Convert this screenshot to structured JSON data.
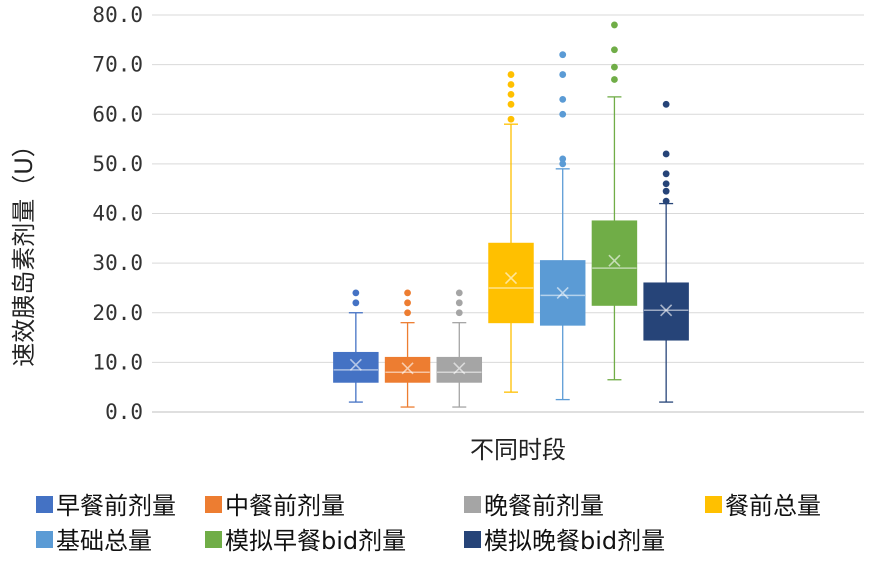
{
  "chart_data": {
    "type": "box",
    "title": "",
    "xlabel": "不同时段",
    "ylabel": "速效胰岛素剂量（U）",
    "ylim": [
      0,
      80
    ],
    "yticks": [
      "0.0",
      "10.0",
      "20.0",
      "30.0",
      "40.0",
      "50.0",
      "60.0",
      "70.0",
      "80.0"
    ],
    "grid": true,
    "legend_position": "bottom",
    "series": [
      {
        "name": "早餐前剂量",
        "color": "#4472C4",
        "whisker_color": "#4472C4",
        "min": 2,
        "q1": 6,
        "median": 8.5,
        "q3": 12,
        "max": 20,
        "mean": 9.5,
        "outliers": [
          22,
          24
        ]
      },
      {
        "name": "中餐前剂量",
        "color": "#ED7D31",
        "whisker_color": "#ED7D31",
        "min": 1,
        "q1": 6,
        "median": 8,
        "q3": 11,
        "max": 18,
        "mean": 8.8,
        "outliers": [
          20,
          22,
          24
        ]
      },
      {
        "name": "晚餐前剂量",
        "color": "#A5A5A5",
        "whisker_color": "#A5A5A5",
        "min": 1,
        "q1": 6,
        "median": 8,
        "q3": 11,
        "max": 18,
        "mean": 8.8,
        "outliers": [
          20,
          22,
          24
        ]
      },
      {
        "name": "餐前总量",
        "color": "#FFC000",
        "whisker_color": "#FFC000",
        "min": 4,
        "q1": 18,
        "median": 25,
        "q3": 34,
        "max": 58,
        "mean": 27,
        "outliers": [
          59,
          62,
          64,
          66,
          68
        ]
      },
      {
        "name": "基础总量",
        "color": "#5B9BD5",
        "whisker_color": "#5B9BD5",
        "min": 2.5,
        "q1": 17.5,
        "median": 23.5,
        "q3": 30.5,
        "max": 49,
        "mean": 24,
        "outliers": [
          50,
          51,
          60,
          63,
          68,
          72
        ]
      },
      {
        "name": "模拟早餐bid剂量",
        "color": "#70AD47",
        "whisker_color": "#70AD47",
        "min": 6.5,
        "q1": 21.5,
        "median": 29,
        "q3": 38.5,
        "max": 63.5,
        "mean": 30.5,
        "outliers": [
          67,
          69.5,
          73,
          78
        ]
      },
      {
        "name": "模拟晚餐bid剂量",
        "color": "#264478",
        "whisker_color": "#264478",
        "min": 2,
        "q1": 14.5,
        "median": 20.5,
        "q3": 26,
        "max": 42,
        "mean": 20.5,
        "outliers": [
          42.5,
          44.5,
          46,
          48,
          52,
          62
        ]
      }
    ]
  }
}
